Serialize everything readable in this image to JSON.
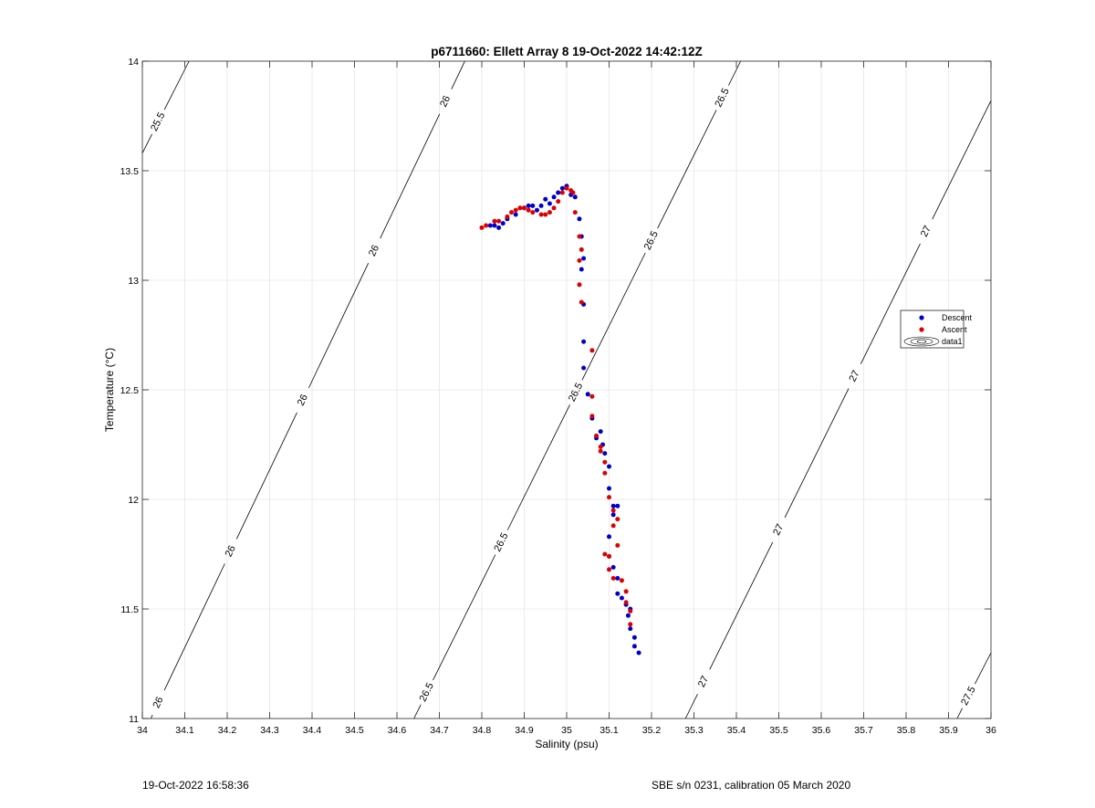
{
  "footer": {
    "left_text": "19-Oct-2022 16:58:36",
    "right_text": "SBE s/n 0231, calibration 05 March 2020"
  },
  "chart_data": {
    "type": "scatter",
    "title": "p6711660: Ellett Array 8 19-Oct-2022 14:42:12Z",
    "xlabel": "Salinity (psu)",
    "ylabel": "Temperature (°C)",
    "xlim": [
      34,
      36
    ],
    "ylim": [
      11,
      14
    ],
    "grid": true,
    "x_ticks": [
      34,
      34.1,
      34.2,
      34.3,
      34.4,
      34.5,
      34.6,
      34.7,
      34.8,
      34.9,
      35,
      35.1,
      35.2,
      35.3,
      35.4,
      35.5,
      35.6,
      35.7,
      35.8,
      35.9,
      36
    ],
    "x_tick_labels": [
      "34",
      "34.1",
      "34.2",
      "34.3",
      "34.4",
      "34.5",
      "34.6",
      "34.7",
      "34.8",
      "34.9",
      "35",
      "35.1",
      "35.2",
      "35.3",
      "35.4",
      "35.5",
      "35.6",
      "35.7",
      "35.8",
      "35.9",
      "36"
    ],
    "y_ticks": [
      11,
      11.5,
      12,
      12.5,
      13,
      13.5,
      14
    ],
    "y_tick_labels": [
      "11",
      "11.5",
      "12",
      "12.5",
      "13",
      "13.5",
      "14"
    ],
    "legend": {
      "position": "right",
      "entries": [
        {
          "name": "Descent",
          "color": "#0000cc",
          "marker": "dot"
        },
        {
          "name": "Ascent",
          "color": "#dd0000",
          "marker": "dot"
        },
        {
          "name": "data1",
          "color": "#000000",
          "marker": "contour"
        }
      ]
    },
    "series": [
      {
        "name": "Descent",
        "color": "#0000cc",
        "points": [
          [
            34.82,
            13.25
          ],
          [
            34.83,
            13.25
          ],
          [
            34.84,
            13.24
          ],
          [
            34.85,
            13.26
          ],
          [
            34.86,
            13.28
          ],
          [
            34.88,
            13.3
          ],
          [
            34.9,
            13.33
          ],
          [
            34.91,
            13.34
          ],
          [
            34.92,
            13.34
          ],
          [
            34.93,
            13.32
          ],
          [
            34.94,
            13.34
          ],
          [
            34.95,
            13.37
          ],
          [
            34.96,
            13.35
          ],
          [
            34.97,
            13.38
          ],
          [
            34.98,
            13.4
          ],
          [
            34.99,
            13.42
          ],
          [
            35.0,
            13.43
          ],
          [
            35.01,
            13.39
          ],
          [
            35.02,
            13.38
          ],
          [
            35.03,
            13.28
          ],
          [
            35.035,
            13.2
          ],
          [
            35.04,
            13.1
          ],
          [
            35.035,
            13.05
          ],
          [
            35.04,
            12.89
          ],
          [
            35.04,
            12.72
          ],
          [
            35.04,
            12.6
          ],
          [
            35.05,
            12.48
          ],
          [
            35.06,
            12.37
          ],
          [
            35.07,
            12.28
          ],
          [
            35.08,
            12.31
          ],
          [
            35.085,
            12.25
          ],
          [
            35.09,
            12.21
          ],
          [
            35.1,
            12.15
          ],
          [
            35.1,
            12.05
          ],
          [
            35.11,
            11.97
          ],
          [
            35.12,
            11.97
          ],
          [
            35.11,
            11.93
          ],
          [
            35.1,
            11.83
          ],
          [
            35.1,
            11.74
          ],
          [
            35.11,
            11.69
          ],
          [
            35.12,
            11.64
          ],
          [
            35.12,
            11.57
          ],
          [
            35.13,
            11.55
          ],
          [
            35.14,
            11.52
          ],
          [
            35.15,
            11.5
          ],
          [
            35.145,
            11.47
          ],
          [
            35.15,
            11.41
          ],
          [
            35.16,
            11.37
          ],
          [
            35.16,
            11.33
          ],
          [
            35.17,
            11.3
          ]
        ]
      },
      {
        "name": "Ascent",
        "color": "#dd0000",
        "points": [
          [
            34.8,
            13.24
          ],
          [
            34.81,
            13.25
          ],
          [
            34.83,
            13.27
          ],
          [
            34.84,
            13.27
          ],
          [
            34.86,
            13.29
          ],
          [
            34.87,
            13.31
          ],
          [
            34.88,
            13.32
          ],
          [
            34.89,
            13.33
          ],
          [
            34.9,
            13.33
          ],
          [
            34.91,
            13.32
          ],
          [
            34.92,
            13.31
          ],
          [
            34.94,
            13.3
          ],
          [
            34.95,
            13.3
          ],
          [
            34.96,
            13.31
          ],
          [
            34.97,
            13.33
          ],
          [
            34.98,
            13.36
          ],
          [
            34.99,
            13.4
          ],
          [
            35.0,
            13.42
          ],
          [
            35.01,
            13.41
          ],
          [
            35.015,
            13.4
          ],
          [
            35.02,
            13.31
          ],
          [
            35.03,
            13.2
          ],
          [
            35.035,
            13.14
          ],
          [
            35.03,
            13.09
          ],
          [
            35.03,
            12.98
          ],
          [
            35.035,
            12.9
          ],
          [
            35.06,
            12.68
          ],
          [
            35.06,
            12.47
          ],
          [
            35.06,
            12.38
          ],
          [
            35.07,
            12.29
          ],
          [
            35.08,
            12.24
          ],
          [
            35.08,
            12.22
          ],
          [
            35.09,
            12.17
          ],
          [
            35.09,
            12.12
          ],
          [
            35.1,
            12.01
          ],
          [
            35.11,
            11.95
          ],
          [
            35.12,
            11.91
          ],
          [
            35.11,
            11.88
          ],
          [
            35.12,
            11.79
          ],
          [
            35.09,
            11.75
          ],
          [
            35.1,
            11.74
          ],
          [
            35.1,
            11.68
          ],
          [
            35.11,
            11.64
          ],
          [
            35.13,
            11.63
          ],
          [
            35.14,
            11.58
          ],
          [
            35.14,
            11.53
          ],
          [
            35.15,
            11.49
          ],
          [
            35.15,
            11.43
          ]
        ]
      }
    ],
    "density_contours": [
      {
        "sigma": 25.5,
        "points": [
          [
            34.0,
            13.58
          ],
          [
            34.11,
            14.0
          ]
        ],
        "labels": [
          {
            "text": "25.5",
            "at": [
              34.04,
              13.72
            ]
          }
        ]
      },
      {
        "sigma": 26,
        "points": [
          [
            34.02,
            11.0
          ],
          [
            34.76,
            14.0
          ]
        ],
        "labels": [
          {
            "text": "26",
            "at": [
              34.03,
              11.08
            ]
          },
          {
            "text": "26",
            "at": [
              34.19,
              11.78
            ]
          },
          {
            "text": "26",
            "at": [
              34.36,
              12.47
            ]
          },
          {
            "text": "26",
            "at": [
              34.53,
              13.15
            ]
          },
          {
            "text": "26",
            "at": [
              34.71,
              13.82
            ]
          }
        ]
      },
      {
        "sigma": 26.5,
        "points": [
          [
            34.64,
            11.0
          ],
          [
            35.41,
            14.0
          ]
        ],
        "labels": [
          {
            "text": "26.5",
            "at": [
              34.67,
              11.12
            ]
          },
          {
            "text": "26.5",
            "at": [
              34.84,
              11.81
            ]
          },
          {
            "text": "26.5",
            "at": [
              35.01,
              12.5
            ]
          },
          {
            "text": "26.5",
            "at": [
              35.18,
              13.2
            ]
          },
          {
            "text": "26.5",
            "at": [
              35.36,
              13.84
            ]
          }
        ]
      },
      {
        "sigma": 27,
        "points": [
          [
            35.28,
            11.0
          ],
          [
            36.0,
            13.82
          ]
        ],
        "labels": [
          {
            "text": "27",
            "at": [
              35.31,
              11.18
            ]
          },
          {
            "text": "27",
            "at": [
              35.48,
              11.88
            ]
          },
          {
            "text": "27",
            "at": [
              35.66,
              12.58
            ]
          },
          {
            "text": "27",
            "at": [
              35.84,
              13.23
            ]
          }
        ]
      },
      {
        "sigma": 27.5,
        "points": [
          [
            35.92,
            11.0
          ],
          [
            36.0,
            11.3
          ]
        ],
        "labels": [
          {
            "text": "27.5",
            "at": [
              35.95,
              11.1
            ]
          }
        ]
      }
    ]
  }
}
